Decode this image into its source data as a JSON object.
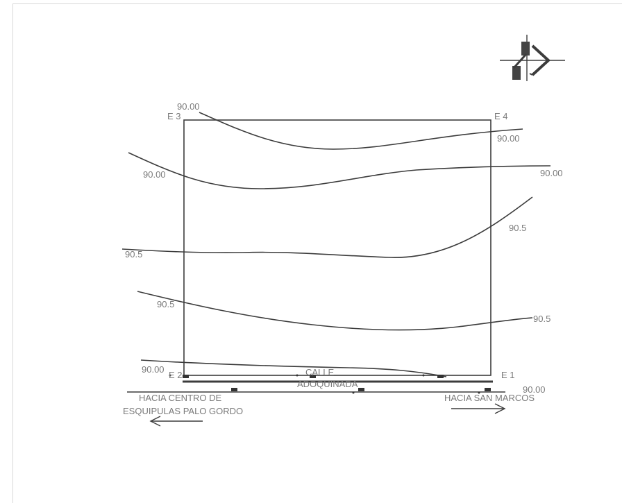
{
  "corners": {
    "e1": "E 1",
    "e2": "E 2",
    "e3": "E 3",
    "e4": "E 4"
  },
  "contours": {
    "c_90_top": "90.00",
    "c_90_top_right": "90.00",
    "c_90_left": "90.00",
    "c_90_right": "90.00",
    "c_905_right": "90.5",
    "c_905_left_mid": "90.5",
    "c_905_left_low": "90.5",
    "c_905_right_low": "90.5",
    "c_90_bottom_left": "90.00",
    "c_90_bottom_right": "90.00"
  },
  "street": {
    "line1": "CALLE",
    "line2": "ADOQUINADA"
  },
  "directions": {
    "left_line1": "HACIA CENTRO DE",
    "left_line2": "ESQUIPULAS PALO GORDO",
    "right": "HACIA SAN MARCOS"
  },
  "colors": {
    "line": "#3c3c3c",
    "text": "#7a7a7a",
    "frame": "#d8d8d8"
  }
}
